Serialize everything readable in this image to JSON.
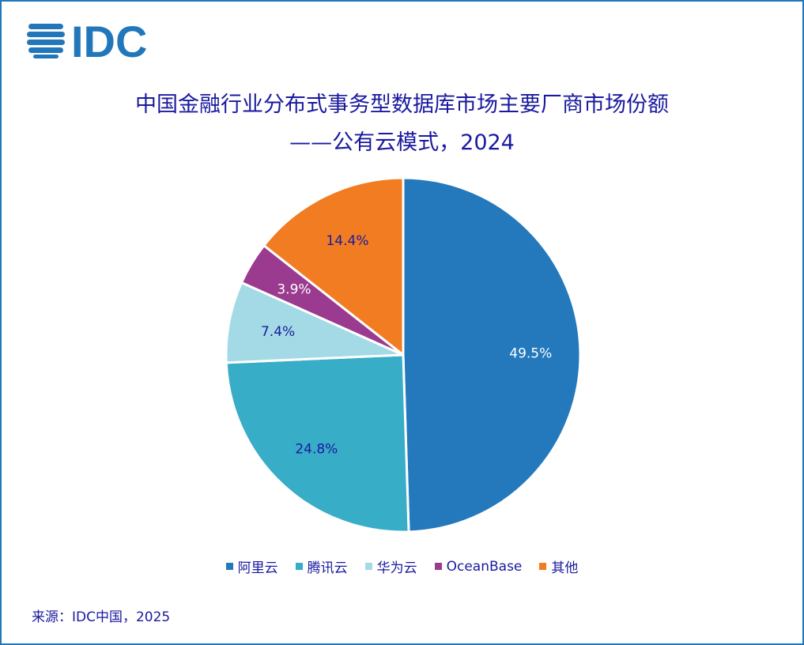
{
  "logo": {
    "text": "IDC",
    "icon": "idc-globe-icon",
    "color": "#2277bb"
  },
  "chart_data": {
    "type": "pie",
    "title": "中国金融行业分布式事务型数据库市场主要厂商市场份额",
    "subtitle": "——公有云模式，2024",
    "categories": [
      "阿里云",
      "腾讯云",
      "华为云",
      "OceanBase",
      "其他"
    ],
    "values": [
      49.5,
      24.8,
      7.4,
      3.9,
      14.4
    ],
    "labels": [
      "49.5%",
      "24.8%",
      "7.4%",
      "3.9%",
      "14.4%"
    ],
    "colors": [
      "#2479bc",
      "#37adc7",
      "#a3dae5",
      "#9b3b8f",
      "#f17c22"
    ],
    "label_colors": [
      "#ffffff",
      "#1a1aa0",
      "#1a1aa0",
      "#ffffff",
      "#1a1aa0"
    ],
    "start": "12 o'clock",
    "direction": "clockwise",
    "legend_position": "bottom"
  },
  "source": "来源：IDC中国，2025"
}
